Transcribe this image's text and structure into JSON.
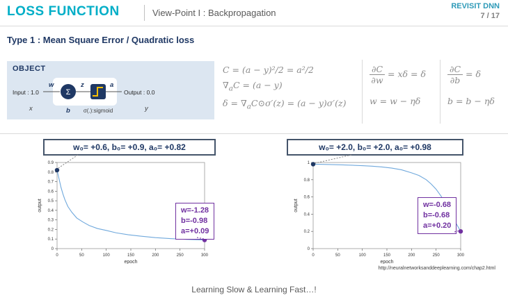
{
  "colors": {
    "accent_cyan": "#00AEC7",
    "brand_teal": "#2E9AB8",
    "navy": "#1F3864",
    "purple": "#7030A0",
    "chart_line": "#6FA8DC",
    "panel_bg": "#DCE6F1",
    "activation_yellow": "#FFC000",
    "formula_gray": "#8C8C8C"
  },
  "header": {
    "title": "LOSS FUNCTION",
    "subtitle": "View-Point I : Backpropagation",
    "brand": "REVISIT DNN",
    "page": "7 / 17"
  },
  "type_line": "Type 1 : Mean Square Error / Quadratic loss",
  "object_panel": {
    "title": "OBJECT",
    "input_label": "Input : 1.0",
    "output_label": "Output : 0.0",
    "weight": "w",
    "preactivation": "z",
    "activation": "a",
    "input_var": "x",
    "bias": "b",
    "output_var": "y",
    "sum_symbol": "Σ",
    "sigmoid_label": "σ(.):sigmoid"
  },
  "formulas": {
    "cost": "C = (a − y)²/2 = a²/2",
    "grad_pre": "∇",
    "grad_sub": "a",
    "grad_post": "C = (a − y)",
    "delta_pre": "δ = ∇",
    "delta_sub": "a",
    "delta_post": "C⊙σ′(z) = (a − y)σ′(z)",
    "dw_num": "∂C",
    "dw_den": "∂w",
    "dw_rhs": "= xδ = δ",
    "w_update": "w = w − ηδ",
    "db_num": "∂C",
    "db_den": "∂b",
    "db_rhs": "= δ",
    "b_update": "b = b − ηδ"
  },
  "chart_data": [
    {
      "type": "line",
      "title": "w₀= +0.6, b₀= +0.9, a₀= +0.82",
      "xlabel": "epoch",
      "ylabel": "output",
      "xlim": [
        0,
        300
      ],
      "ylim": [
        0,
        0.9
      ],
      "xticks": [
        0,
        50,
        100,
        150,
        200,
        250,
        300
      ],
      "yticks": [
        0,
        0.1,
        0.2,
        0.3,
        0.4,
        0.5,
        0.6,
        0.7,
        0.8,
        0.9
      ],
      "x": [
        0,
        4,
        8,
        12,
        16,
        22,
        30,
        40,
        52,
        66,
        82,
        100,
        120,
        145,
        170,
        200,
        230,
        265,
        300
      ],
      "y": [
        0.82,
        0.73,
        0.64,
        0.57,
        0.51,
        0.44,
        0.38,
        0.32,
        0.28,
        0.24,
        0.21,
        0.19,
        0.165,
        0.145,
        0.13,
        0.115,
        0.105,
        0.096,
        0.09
      ],
      "start_point": {
        "epoch": 0,
        "output": 0.82
      },
      "end_point": {
        "epoch": 300,
        "output": 0.09
      },
      "annotation": [
        "w=-1.28",
        "b=-0.98",
        "a=+0.09"
      ]
    },
    {
      "type": "line",
      "title": "w₀= +2.0, b₀= +2.0, a₀= +0.98",
      "xlabel": "epoch",
      "ylabel": "output",
      "xlim": [
        0,
        300
      ],
      "ylim": [
        0,
        1.0
      ],
      "xticks": [
        0,
        50,
        100,
        150,
        200,
        250,
        300
      ],
      "yticks": [
        0,
        0.2,
        0.4,
        0.6,
        0.8,
        1.0
      ],
      "x": [
        0,
        20,
        40,
        60,
        80,
        100,
        120,
        140,
        160,
        180,
        200,
        215,
        230,
        240,
        250,
        260,
        270,
        280,
        290,
        300
      ],
      "y": [
        0.98,
        0.978,
        0.975,
        0.972,
        0.968,
        0.963,
        0.957,
        0.948,
        0.935,
        0.915,
        0.88,
        0.85,
        0.8,
        0.75,
        0.69,
        0.61,
        0.52,
        0.41,
        0.3,
        0.2
      ],
      "start_point": {
        "epoch": 0,
        "output": 0.98
      },
      "end_point": {
        "epoch": 300,
        "output": 0.2
      },
      "annotation": [
        "w=-0.68",
        "b=-0.68",
        "a=+0.20"
      ]
    }
  ],
  "source_url": "http://neuralnetworksanddeeplearning.com/chap2.html",
  "footer": "Learning Slow & Learning Fast…!"
}
